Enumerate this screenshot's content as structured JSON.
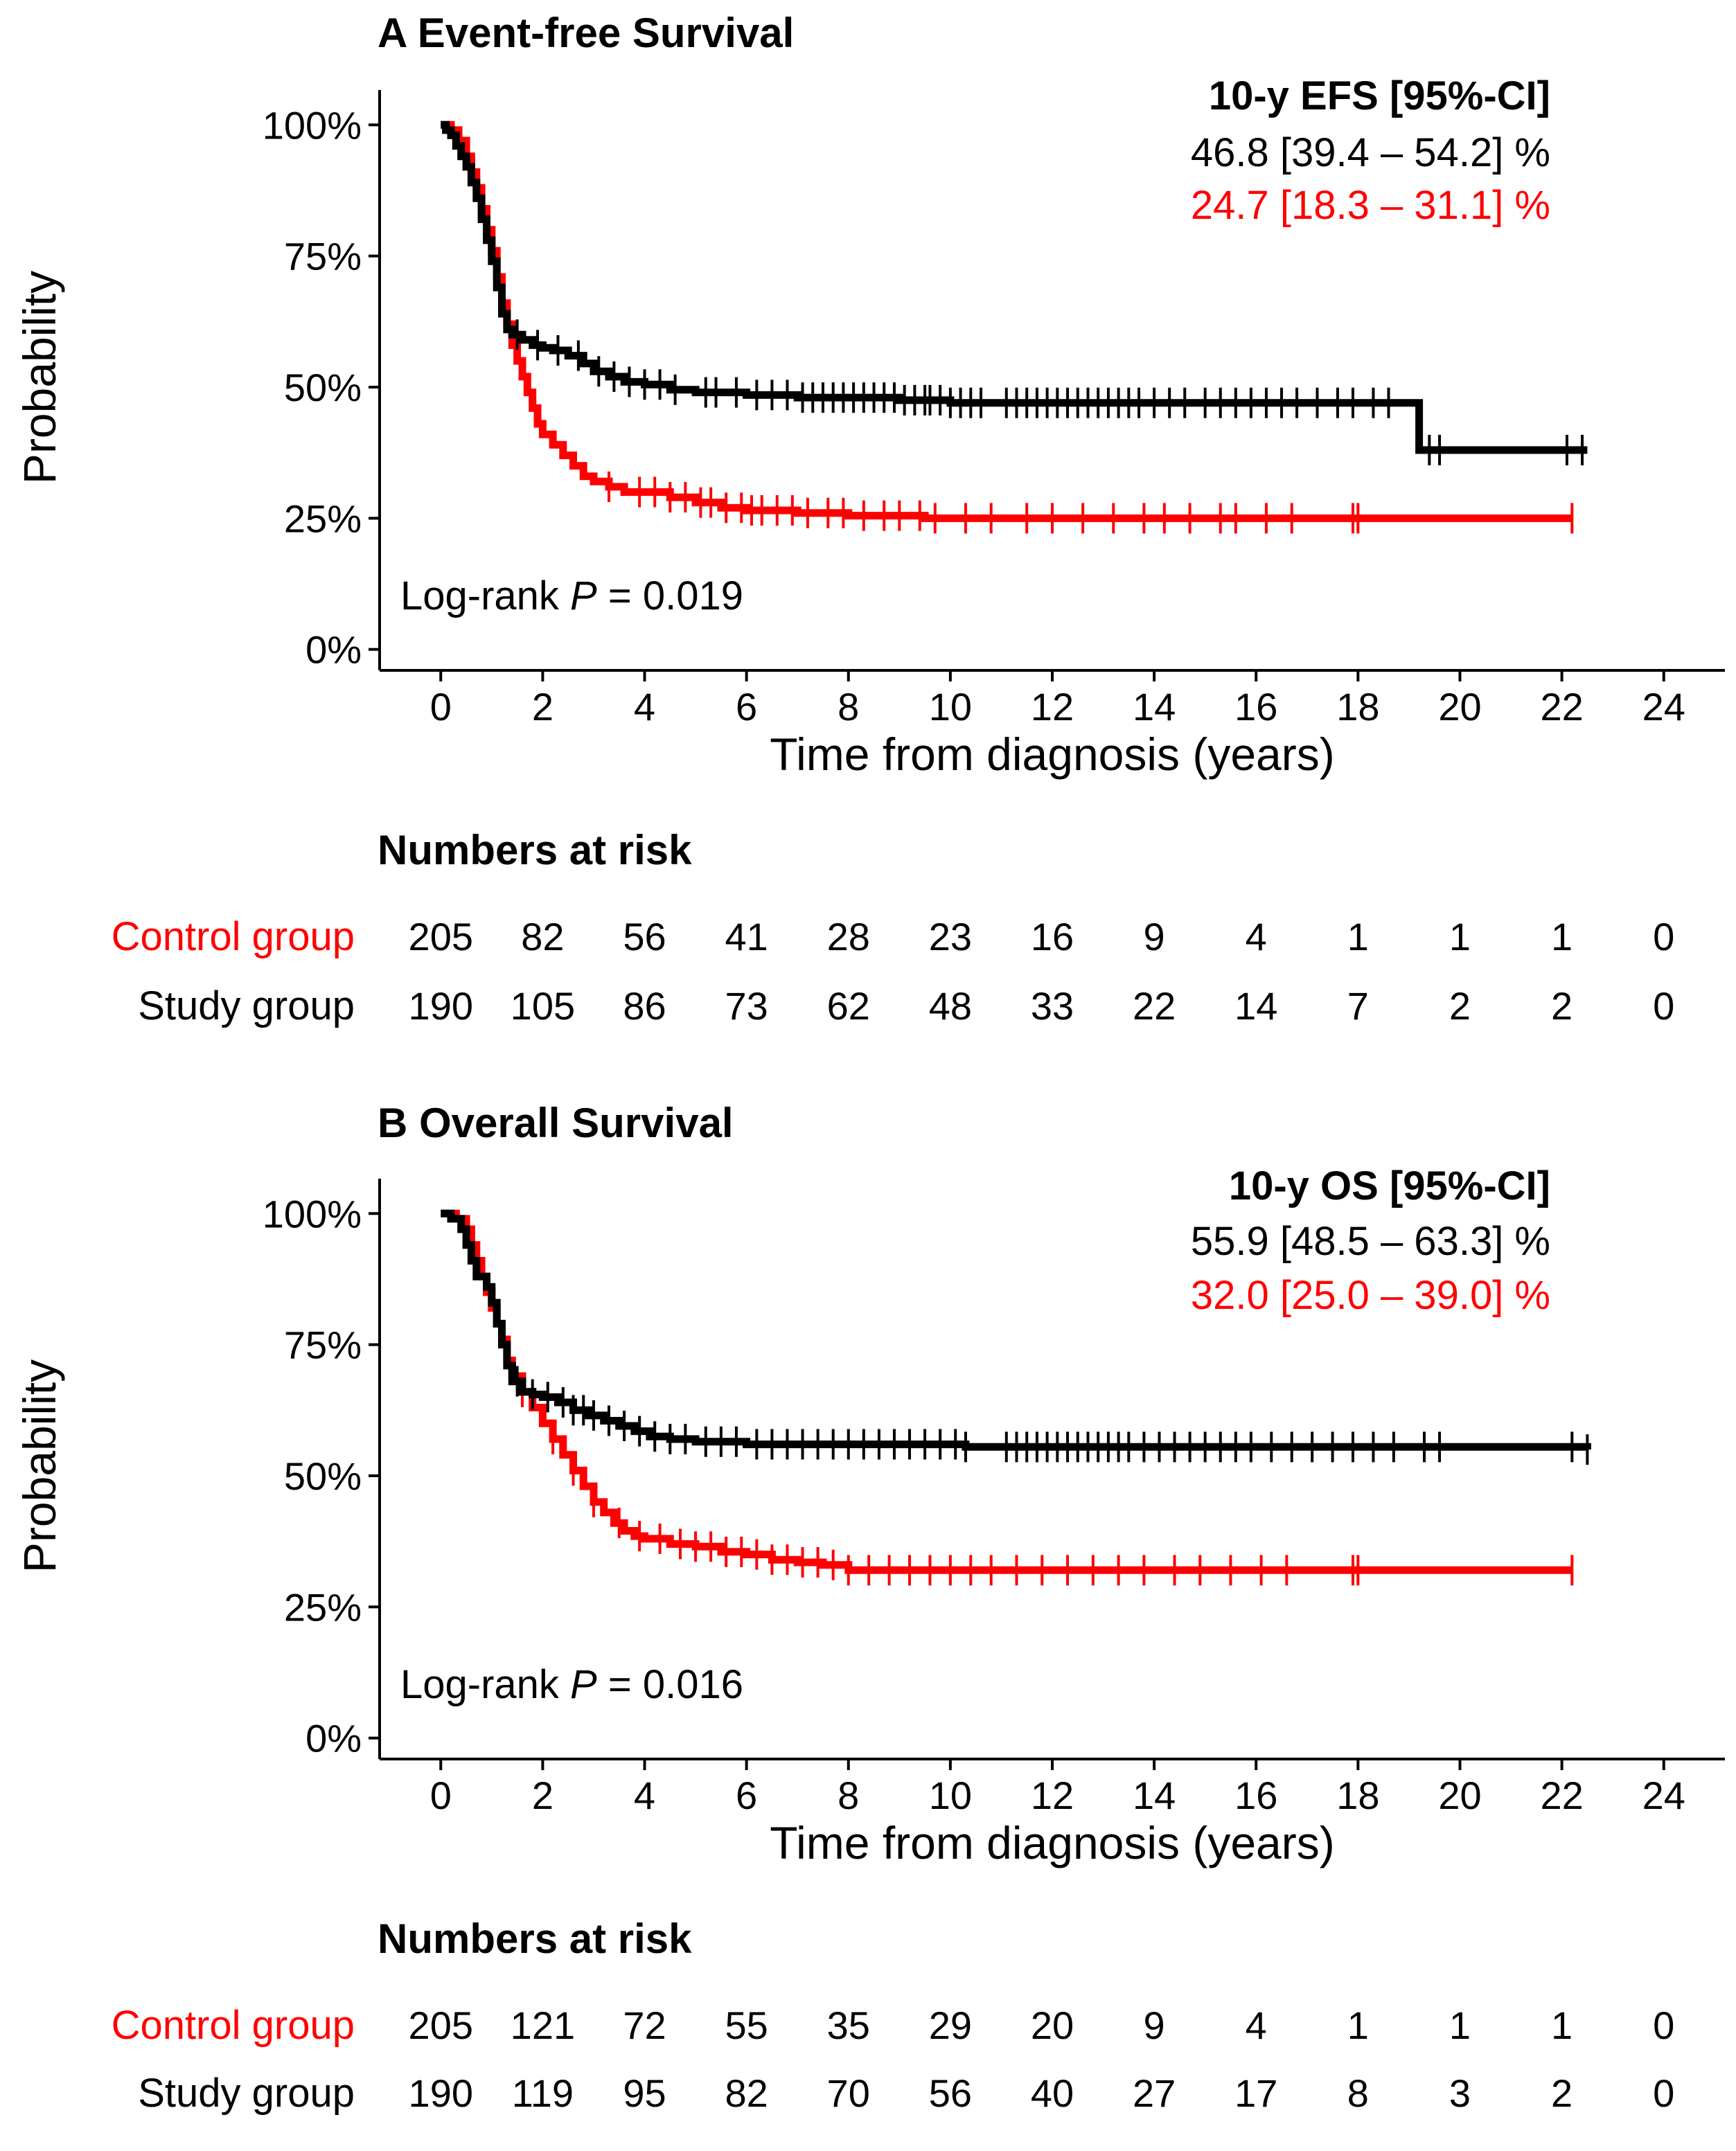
{
  "colors": {
    "study": "#000000",
    "control": "#ff0000",
    "axis": "#000000"
  },
  "chart_data": [
    {
      "type": "line",
      "subtype": "kaplan-meier",
      "panel_label": "A",
      "title": "A Event-free Survival",
      "xlabel": "Time from diagnosis (years)",
      "ylabel": "Probability",
      "xlim": [
        -1.2,
        25.2
      ],
      "ylim": [
        -0.04,
        1.04
      ],
      "x_ticks": [
        0,
        2,
        4,
        6,
        8,
        10,
        12,
        14,
        16,
        18,
        20,
        22,
        24
      ],
      "x_tick_labels": [
        "0",
        "2",
        "4",
        "6",
        "8",
        "10",
        "12",
        "14",
        "16",
        "18",
        "20",
        "22",
        "24"
      ],
      "y_ticks": [
        0,
        0.25,
        0.5,
        0.75,
        1.0
      ],
      "y_tick_labels": [
        "0%",
        "25%",
        "50%",
        "75%",
        "100%"
      ],
      "estimate_header": "10-y EFS [95%-CI]",
      "pvalue_prefix": "Log-rank ",
      "pvalue_italic": "P",
      "pvalue_suffix": " = 0.019",
      "series": [
        {
          "name": "Study group",
          "color": "#000000",
          "estimate_text": "46.8 [39.4 – 54.2] %",
          "steps": [
            [
              0,
              1.0
            ],
            [
              0.1,
              0.99
            ],
            [
              0.2,
              0.98
            ],
            [
              0.3,
              0.96
            ],
            [
              0.4,
              0.94
            ],
            [
              0.5,
              0.92
            ],
            [
              0.6,
              0.89
            ],
            [
              0.7,
              0.86
            ],
            [
              0.8,
              0.82
            ],
            [
              0.9,
              0.78
            ],
            [
              1.0,
              0.74
            ],
            [
              1.1,
              0.69
            ],
            [
              1.2,
              0.64
            ],
            [
              1.3,
              0.61
            ],
            [
              1.4,
              0.6
            ],
            [
              1.6,
              0.59
            ],
            [
              1.8,
              0.58
            ],
            [
              2.0,
              0.575
            ],
            [
              2.2,
              0.57
            ],
            [
              2.5,
              0.56
            ],
            [
              2.8,
              0.545
            ],
            [
              3.0,
              0.53
            ],
            [
              3.3,
              0.52
            ],
            [
              3.6,
              0.51
            ],
            [
              4.0,
              0.505
            ],
            [
              4.5,
              0.495
            ],
            [
              5.0,
              0.49
            ],
            [
              6.0,
              0.485
            ],
            [
              7.0,
              0.48
            ],
            [
              9.0,
              0.475
            ],
            [
              10.0,
              0.47
            ],
            [
              19.1,
              0.47
            ],
            [
              19.2,
              0.38
            ],
            [
              22.5,
              0.38
            ]
          ],
          "censor_times": [
            1.5,
            1.9,
            2.3,
            2.7,
            3.1,
            3.4,
            3.7,
            4.0,
            4.3,
            4.6,
            5.2,
            5.4,
            5.8,
            6.2,
            6.5,
            6.8,
            7.1,
            7.3,
            7.5,
            7.7,
            7.9,
            8.1,
            8.3,
            8.5,
            8.7,
            8.9,
            9.1,
            9.3,
            9.5,
            9.6,
            9.8,
            10.0,
            10.2,
            10.4,
            10.6,
            11.1,
            11.3,
            11.5,
            11.7,
            11.9,
            12.1,
            12.3,
            12.5,
            12.7,
            12.9,
            13.1,
            13.3,
            13.5,
            13.7,
            14.0,
            14.3,
            14.6,
            15.0,
            15.3,
            15.6,
            15.9,
            16.2,
            16.5,
            16.8,
            17.2,
            17.6,
            17.9,
            18.3,
            18.6,
            19.4,
            19.6,
            22.1,
            22.4
          ],
          "risk": [
            "190",
            "105",
            "86",
            "73",
            "62",
            "48",
            "33",
            "22",
            "14",
            "7",
            "2",
            "2",
            "0"
          ]
        },
        {
          "name": "Control group",
          "color": "#ff0000",
          "estimate_text": "24.7 [18.3 – 31.1] %",
          "steps": [
            [
              0,
              1.0
            ],
            [
              0.2,
              0.99
            ],
            [
              0.35,
              0.97
            ],
            [
              0.5,
              0.94
            ],
            [
              0.6,
              0.91
            ],
            [
              0.7,
              0.88
            ],
            [
              0.8,
              0.84
            ],
            [
              0.9,
              0.8
            ],
            [
              1.0,
              0.76
            ],
            [
              1.1,
              0.71
            ],
            [
              1.2,
              0.66
            ],
            [
              1.3,
              0.62
            ],
            [
              1.4,
              0.58
            ],
            [
              1.5,
              0.55
            ],
            [
              1.6,
              0.52
            ],
            [
              1.7,
              0.49
            ],
            [
              1.8,
              0.46
            ],
            [
              1.9,
              0.43
            ],
            [
              2.0,
              0.41
            ],
            [
              2.2,
              0.39
            ],
            [
              2.4,
              0.37
            ],
            [
              2.6,
              0.35
            ],
            [
              2.8,
              0.33
            ],
            [
              3.0,
              0.32
            ],
            [
              3.3,
              0.31
            ],
            [
              3.6,
              0.3
            ],
            [
              4.0,
              0.3
            ],
            [
              4.5,
              0.29
            ],
            [
              5.0,
              0.28
            ],
            [
              5.5,
              0.27
            ],
            [
              6.0,
              0.265
            ],
            [
              7.0,
              0.26
            ],
            [
              8.0,
              0.255
            ],
            [
              9.5,
              0.25
            ],
            [
              22.2,
              0.25
            ]
          ],
          "censor_times": [
            3.3,
            3.9,
            4.2,
            4.5,
            4.8,
            5.1,
            5.3,
            5.6,
            5.9,
            6.1,
            6.3,
            6.6,
            6.9,
            7.2,
            7.6,
            7.9,
            8.3,
            8.7,
            9.0,
            9.4,
            9.7,
            10.3,
            10.8,
            11.5,
            12.0,
            12.6,
            13.2,
            13.8,
            14.2,
            14.7,
            15.3,
            15.6,
            16.2,
            16.7,
            17.9,
            18.0,
            22.2
          ],
          "risk": [
            "205",
            "82",
            "56",
            "41",
            "28",
            "23",
            "16",
            "9",
            "4",
            "1",
            "1",
            "1",
            "0"
          ]
        }
      ],
      "risk_table": {
        "title": "Numbers at risk",
        "row_labels": [
          "Control group",
          "Study group"
        ]
      }
    },
    {
      "type": "line",
      "subtype": "kaplan-meier",
      "panel_label": "B",
      "title": "B Overall Survival",
      "xlabel": "Time from diagnosis (years)",
      "ylabel": "Probability",
      "xlim": [
        -1.2,
        25.2
      ],
      "ylim": [
        -0.04,
        1.04
      ],
      "x_ticks": [
        0,
        2,
        4,
        6,
        8,
        10,
        12,
        14,
        16,
        18,
        20,
        22,
        24
      ],
      "x_tick_labels": [
        "0",
        "2",
        "4",
        "6",
        "8",
        "10",
        "12",
        "14",
        "16",
        "18",
        "20",
        "22",
        "24"
      ],
      "y_ticks": [
        0,
        0.25,
        0.5,
        0.75,
        1.0
      ],
      "y_tick_labels": [
        "0%",
        "25%",
        "50%",
        "75%",
        "100%"
      ],
      "estimate_header": "10-y OS [95%-CI]",
      "pvalue_prefix": "Log-rank ",
      "pvalue_italic": "P",
      "pvalue_suffix": " = 0.016",
      "series": [
        {
          "name": "Study group",
          "color": "#000000",
          "estimate_text": "55.9 [48.5 – 63.3] %",
          "steps": [
            [
              0,
              1.0
            ],
            [
              0.2,
              0.99
            ],
            [
              0.4,
              0.97
            ],
            [
              0.5,
              0.94
            ],
            [
              0.6,
              0.91
            ],
            [
              0.7,
              0.88
            ],
            [
              0.9,
              0.86
            ],
            [
              1.0,
              0.83
            ],
            [
              1.1,
              0.79
            ],
            [
              1.2,
              0.75
            ],
            [
              1.3,
              0.71
            ],
            [
              1.4,
              0.68
            ],
            [
              1.6,
              0.66
            ],
            [
              1.8,
              0.655
            ],
            [
              2.0,
              0.65
            ],
            [
              2.3,
              0.64
            ],
            [
              2.6,
              0.625
            ],
            [
              2.9,
              0.615
            ],
            [
              3.2,
              0.605
            ],
            [
              3.5,
              0.595
            ],
            [
              3.8,
              0.585
            ],
            [
              4.1,
              0.575
            ],
            [
              4.5,
              0.57
            ],
            [
              5.0,
              0.565
            ],
            [
              6.0,
              0.56
            ],
            [
              7.0,
              0.56
            ],
            [
              8.0,
              0.56
            ],
            [
              10.3,
              0.555
            ],
            [
              22.5,
              0.55
            ]
          ],
          "censor_times": [
            1.5,
            1.8,
            2.1,
            2.4,
            2.6,
            2.8,
            3.0,
            3.3,
            3.6,
            3.9,
            4.2,
            4.5,
            4.8,
            5.2,
            5.5,
            5.8,
            6.2,
            6.5,
            6.8,
            7.1,
            7.4,
            7.7,
            8.0,
            8.3,
            8.6,
            8.9,
            9.2,
            9.5,
            9.8,
            10.1,
            10.3,
            11.1,
            11.3,
            11.5,
            11.7,
            11.9,
            12.1,
            12.3,
            12.5,
            12.7,
            12.9,
            13.1,
            13.3,
            13.5,
            13.8,
            14.1,
            14.4,
            14.7,
            15.0,
            15.3,
            15.6,
            15.9,
            16.3,
            16.7,
            17.1,
            17.5,
            17.9,
            18.3,
            18.7,
            19.3,
            19.6,
            22.2,
            22.5
          ],
          "risk": [
            "190",
            "119",
            "95",
            "82",
            "70",
            "56",
            "40",
            "27",
            "17",
            "8",
            "3",
            "2",
            "0"
          ]
        },
        {
          "name": "Control group",
          "color": "#ff0000",
          "estimate_text": "32.0 [25.0 – 39.0] %",
          "steps": [
            [
              0,
              1.0
            ],
            [
              0.3,
              0.99
            ],
            [
              0.5,
              0.97
            ],
            [
              0.6,
              0.94
            ],
            [
              0.7,
              0.91
            ],
            [
              0.8,
              0.88
            ],
            [
              0.9,
              0.85
            ],
            [
              1.0,
              0.82
            ],
            [
              1.1,
              0.79
            ],
            [
              1.2,
              0.76
            ],
            [
              1.3,
              0.72
            ],
            [
              1.4,
              0.69
            ],
            [
              1.6,
              0.66
            ],
            [
              1.8,
              0.63
            ],
            [
              2.0,
              0.6
            ],
            [
              2.2,
              0.57
            ],
            [
              2.4,
              0.54
            ],
            [
              2.6,
              0.51
            ],
            [
              2.8,
              0.48
            ],
            [
              3.0,
              0.45
            ],
            [
              3.2,
              0.43
            ],
            [
              3.4,
              0.41
            ],
            [
              3.6,
              0.395
            ],
            [
              3.8,
              0.385
            ],
            [
              4.0,
              0.38
            ],
            [
              4.5,
              0.37
            ],
            [
              5.0,
              0.365
            ],
            [
              5.5,
              0.355
            ],
            [
              6.0,
              0.35
            ],
            [
              6.5,
              0.34
            ],
            [
              7.0,
              0.335
            ],
            [
              7.5,
              0.33
            ],
            [
              8.0,
              0.32
            ],
            [
              22.2,
              0.32
            ]
          ],
          "censor_times": [
            1.6,
            2.2,
            2.6,
            3.0,
            3.5,
            3.9,
            4.3,
            4.7,
            5.0,
            5.3,
            5.6,
            5.9,
            6.2,
            6.5,
            6.8,
            7.1,
            7.4,
            7.7,
            8.0,
            8.4,
            8.8,
            9.2,
            9.6,
            10.0,
            10.4,
            10.8,
            11.3,
            11.8,
            12.3,
            12.8,
            13.3,
            13.8,
            14.4,
            14.9,
            15.5,
            16.1,
            16.6,
            17.9,
            18.0,
            22.2
          ],
          "risk": [
            "205",
            "121",
            "72",
            "55",
            "35",
            "29",
            "20",
            "9",
            "4",
            "1",
            "1",
            "1",
            "0"
          ]
        }
      ],
      "risk_table": {
        "title": "Numbers at risk",
        "row_labels": [
          "Control group",
          "Study group"
        ]
      }
    }
  ]
}
